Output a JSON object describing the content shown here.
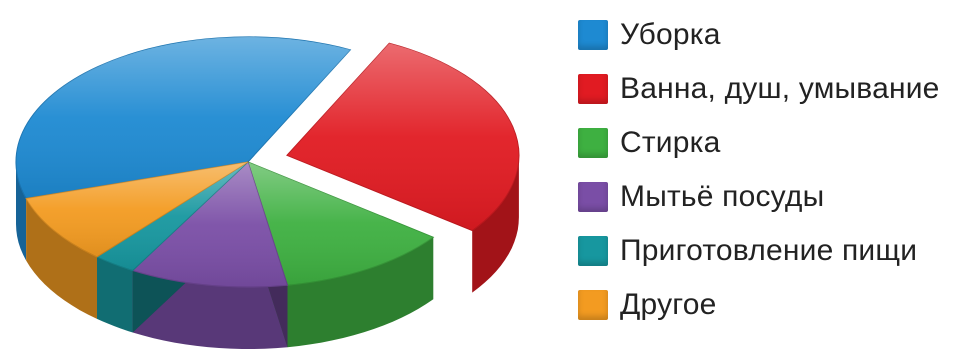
{
  "chart_data": {
    "type": "pie",
    "title": "",
    "categories": [
      "Уборка",
      "Ванна, душ, умывание",
      "Стирка",
      "Мытьё посуды",
      "Приготовление пищи",
      "Другое"
    ],
    "values": [
      37,
      28,
      12,
      11,
      3,
      9
    ],
    "colors": [
      "#1e8ad2",
      "#e11b22",
      "#3eb041",
      "#7a4ea6",
      "#17979f",
      "#f39b21"
    ],
    "exploded": [
      "Ванна, душ, умывание"
    ],
    "style": "3d",
    "legend_position": "right"
  },
  "legend": {
    "items": [
      {
        "label": "Уборка",
        "color": "#1e8ad2"
      },
      {
        "label": "Ванна, душ, умывание",
        "color": "#e11b22"
      },
      {
        "label": "Стирка",
        "color": "#3eb041"
      },
      {
        "label": "Мытьё посуды",
        "color": "#7a4ea6"
      },
      {
        "label": "Приготовление пищи",
        "color": "#17979f"
      },
      {
        "label": "Другое",
        "color": "#f39b21"
      }
    ]
  }
}
